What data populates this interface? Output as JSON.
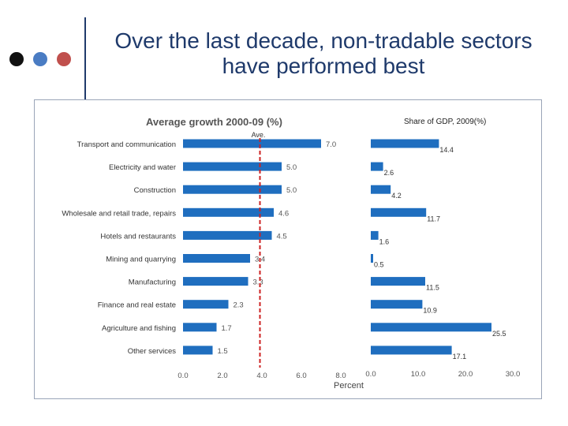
{
  "slide": {
    "title_line1": "Over the last decade, non-tradable sectors",
    "title_line2": "have performed best",
    "bullet_colors": [
      "#111111",
      "#4a7cc3",
      "#c0504d"
    ]
  },
  "chart_data": [
    {
      "type": "bar",
      "orientation": "horizontal",
      "title": "Average growth 2000-09 (%)",
      "xlabel": "Percent",
      "categories": [
        "Transport and communication",
        "Electricity and water",
        "Construction",
        "Wholesale and retail trade, repairs",
        "Hotels and restaurants",
        "Mining and quarrying",
        "Manufacturing",
        "Finance and real estate",
        "Agriculture and fishing",
        "Other services"
      ],
      "values": [
        7.0,
        5.0,
        5.0,
        4.6,
        4.5,
        3.4,
        3.3,
        2.3,
        1.7,
        1.5
      ],
      "value_labels": [
        "7.0",
        "5.0",
        "5.0",
        "4.6",
        "4.5",
        "3.4",
        "3.3",
        "2.3",
        "1.7",
        "1.5"
      ],
      "xlim": [
        0,
        8
      ],
      "xticks": [
        "0.0",
        "2.0",
        "4.0",
        "6.0",
        "8.0"
      ],
      "reference_line": {
        "label": "Ave.",
        "value": 3.9,
        "color": "#cc2222",
        "style": "dashed"
      },
      "bar_color": "#1f6ebf",
      "grid": false
    },
    {
      "type": "bar",
      "orientation": "horizontal",
      "title": "Share of GDP, 2009(%)",
      "categories": [
        "Transport and communication",
        "Electricity and water",
        "Construction",
        "Wholesale and retail trade, repairs",
        "Hotels and restaurants",
        "Mining and quarrying",
        "Manufacturing",
        "Finance and real estate",
        "Agriculture and fishing",
        "Other services"
      ],
      "values": [
        14.4,
        2.6,
        4.2,
        11.7,
        1.6,
        0.5,
        11.5,
        10.9,
        25.5,
        17.1
      ],
      "value_labels": [
        "14.4",
        "2.6",
        "4.2",
        "11.7",
        "1.6",
        "0.5",
        "11.5",
        "10.9",
        "25.5",
        "17.1"
      ],
      "xlim": [
        0,
        30
      ],
      "xticks": [
        "0.0",
        "10.0",
        "20.0",
        "30.0"
      ],
      "bar_color": "#1f6ebf",
      "grid": false
    }
  ]
}
